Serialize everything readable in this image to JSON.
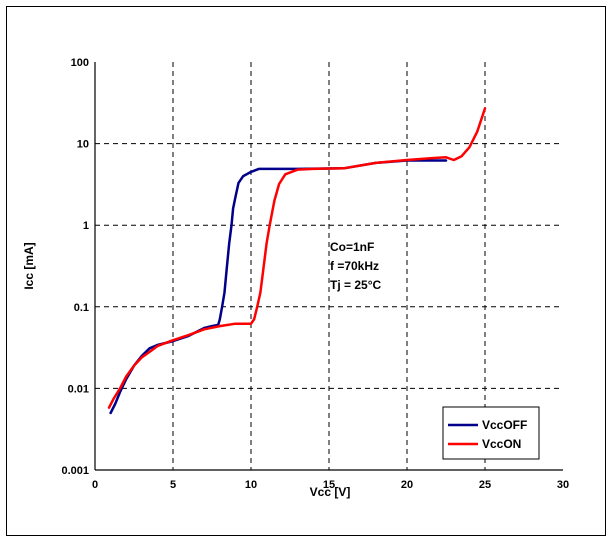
{
  "chart_data": {
    "type": "line",
    "xlabel": "Vcc [V]",
    "ylabel": "Icc [mA]",
    "xlim": [
      0,
      30
    ],
    "ylim": [
      0.001,
      100
    ],
    "yscale": "log",
    "grid": true,
    "legend_position": "bottom-right",
    "x_ticks": [
      "0",
      "5",
      "10",
      "15",
      "20",
      "25",
      "30"
    ],
    "y_ticks": [
      "0.001",
      "0.01",
      "0.1",
      "1",
      "10",
      "100"
    ],
    "annotations": [
      "Co=1nF",
      "f =70kHz",
      "Tj = 25°C"
    ],
    "series": [
      {
        "name": "VccOFF",
        "color": "#00008B",
        "points": [
          [
            1.0,
            0.005
          ],
          [
            1.3,
            0.0065
          ],
          [
            1.6,
            0.009
          ],
          [
            2.0,
            0.013
          ],
          [
            2.5,
            0.019
          ],
          [
            3.0,
            0.025
          ],
          [
            3.5,
            0.031
          ],
          [
            4.0,
            0.034
          ],
          [
            5.0,
            0.038
          ],
          [
            6.0,
            0.044
          ],
          [
            7.0,
            0.055
          ],
          [
            7.5,
            0.058
          ],
          [
            7.9,
            0.06
          ],
          [
            8.0,
            0.07
          ],
          [
            8.15,
            0.1
          ],
          [
            8.3,
            0.15
          ],
          [
            8.45,
            0.3
          ],
          [
            8.6,
            0.6
          ],
          [
            8.75,
            1.0
          ],
          [
            8.85,
            1.6
          ],
          [
            9.0,
            2.2
          ],
          [
            9.2,
            3.3
          ],
          [
            9.5,
            4.0
          ],
          [
            10.0,
            4.5
          ],
          [
            10.5,
            4.9
          ],
          [
            11.0,
            4.9
          ],
          [
            12.0,
            4.9
          ],
          [
            13.0,
            4.9
          ],
          [
            16.0,
            5.0
          ],
          [
            18.0,
            5.8
          ],
          [
            20.0,
            6.2
          ],
          [
            22.0,
            6.2
          ],
          [
            22.5,
            6.2
          ]
        ]
      },
      {
        "name": "VccON",
        "color": "#FF0000",
        "points": [
          [
            0.9,
            0.0058
          ],
          [
            1.2,
            0.0075
          ],
          [
            1.6,
            0.01
          ],
          [
            2.0,
            0.014
          ],
          [
            2.5,
            0.019
          ],
          [
            3.0,
            0.024
          ],
          [
            3.5,
            0.028
          ],
          [
            4.0,
            0.033
          ],
          [
            5.0,
            0.039
          ],
          [
            6.0,
            0.045
          ],
          [
            7.0,
            0.053
          ],
          [
            8.0,
            0.058
          ],
          [
            9.0,
            0.062
          ],
          [
            10.0,
            0.062
          ],
          [
            10.2,
            0.07
          ],
          [
            10.4,
            0.1
          ],
          [
            10.6,
            0.15
          ],
          [
            10.8,
            0.3
          ],
          [
            11.0,
            0.6
          ],
          [
            11.2,
            1.0
          ],
          [
            11.5,
            2.0
          ],
          [
            11.8,
            3.2
          ],
          [
            12.2,
            4.2
          ],
          [
            13.0,
            4.8
          ],
          [
            14.0,
            4.9
          ],
          [
            16.0,
            5.0
          ],
          [
            18.0,
            5.8
          ],
          [
            20.0,
            6.3
          ],
          [
            21.5,
            6.6
          ],
          [
            22.5,
            6.8
          ],
          [
            23.0,
            6.3
          ],
          [
            23.5,
            7.0
          ],
          [
            24.0,
            9.0
          ],
          [
            24.5,
            14.0
          ],
          [
            25.0,
            27.0
          ]
        ]
      }
    ]
  }
}
